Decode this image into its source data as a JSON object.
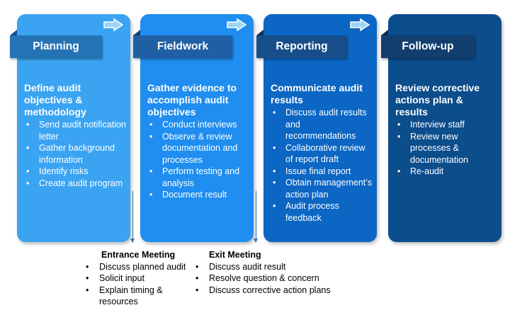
{
  "colors": {
    "planning": "#3aa4f2",
    "fieldwork": "#1f8ef0",
    "reporting": "#0b66c4",
    "followup": "#0c4d8c",
    "tag_planning": "#2572b4",
    "tag_fieldwork": "#1f5fa3",
    "tag_reporting": "#174e8a",
    "tag_followup": "#123e6f",
    "connector": "#2e75b6"
  },
  "phases": [
    {
      "title": "Planning",
      "heading": "Define audit objectives & methodology",
      "items": [
        "Send audit notification letter",
        "Gather background information",
        "Identify risks",
        "Create audit program"
      ]
    },
    {
      "title": "Fieldwork",
      "heading": "Gather evidence to accomplish audit objectives",
      "items": [
        "Conduct interviews",
        "Observe & review documentation and processes",
        "Perform testing and analysis",
        "Document result"
      ]
    },
    {
      "title": "Reporting",
      "heading": "Communicate audit results",
      "items": [
        "Discuss audit results and recommendations",
        "Collaborative review of report draft",
        "Issue final report",
        "Obtain management’s action plan",
        "Audit process feedback"
      ]
    },
    {
      "title": "Follow-up",
      "heading": "Review corrective actions plan & results",
      "items": [
        "Interview staff",
        "Review new processes & documentation",
        "Re-audit"
      ]
    }
  ],
  "meetings": [
    {
      "title": "Entrance Meeting",
      "items": [
        "Discuss planned audit",
        "Solicit input",
        "Explain timing & resources"
      ]
    },
    {
      "title": "Exit Meeting",
      "items": [
        "Discuss audit result",
        "Resolve question & concern",
        "Discuss corrective action plans"
      ]
    }
  ],
  "icons": {
    "phase_arrow": "right-arrow-icon"
  }
}
